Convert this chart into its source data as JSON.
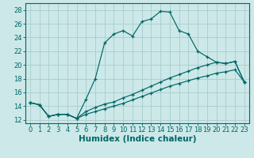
{
  "xlabel": "Humidex (Indice chaleur)",
  "bg_color": "#cce8e8",
  "grid_color": "#aacccc",
  "line_color": "#006666",
  "xlim": [
    -0.5,
    23.5
  ],
  "ylim": [
    11.5,
    29
  ],
  "xticks": [
    0,
    1,
    2,
    3,
    4,
    5,
    6,
    7,
    8,
    9,
    10,
    11,
    12,
    13,
    14,
    15,
    16,
    17,
    18,
    19,
    20,
    21,
    22,
    23
  ],
  "yticks": [
    12,
    14,
    16,
    18,
    20,
    22,
    24,
    26,
    28
  ],
  "lines": [
    {
      "x": [
        0,
        1,
        2,
        3,
        4,
        5,
        6,
        7,
        8,
        9,
        10,
        11,
        12,
        13,
        14,
        15,
        16,
        17,
        18,
        19,
        20,
        21,
        22,
        23
      ],
      "y": [
        14.5,
        14.2,
        12.5,
        12.8,
        12.8,
        12.2,
        15.0,
        18.0,
        23.2,
        24.5,
        25.0,
        24.2,
        26.3,
        26.7,
        27.8,
        27.7,
        25.0,
        24.5,
        22.0,
        21.2,
        20.4,
        20.2,
        20.5,
        17.5
      ]
    },
    {
      "x": [
        0,
        1,
        2,
        3,
        4,
        5,
        6,
        7,
        8,
        9,
        10,
        11,
        12,
        13,
        14,
        15,
        16,
        17,
        18,
        19,
        20,
        21,
        22,
        23
      ],
      "y": [
        14.5,
        14.2,
        12.5,
        12.8,
        12.8,
        12.2,
        13.2,
        13.8,
        14.3,
        14.6,
        15.2,
        15.7,
        16.3,
        16.9,
        17.5,
        18.1,
        18.6,
        19.1,
        19.6,
        20.0,
        20.4,
        20.2,
        20.5,
        17.5
      ]
    },
    {
      "x": [
        0,
        1,
        2,
        3,
        4,
        5,
        6,
        7,
        8,
        9,
        10,
        11,
        12,
        13,
        14,
        15,
        16,
        17,
        18,
        19,
        20,
        21,
        22,
        23
      ],
      "y": [
        14.5,
        14.2,
        12.5,
        12.8,
        12.8,
        12.2,
        12.8,
        13.2,
        13.6,
        14.0,
        14.4,
        14.9,
        15.4,
        15.9,
        16.4,
        16.9,
        17.3,
        17.7,
        18.1,
        18.4,
        18.8,
        19.0,
        19.3,
        17.5
      ]
    }
  ],
  "tick_fontsize": 6,
  "label_fontsize": 7.5
}
